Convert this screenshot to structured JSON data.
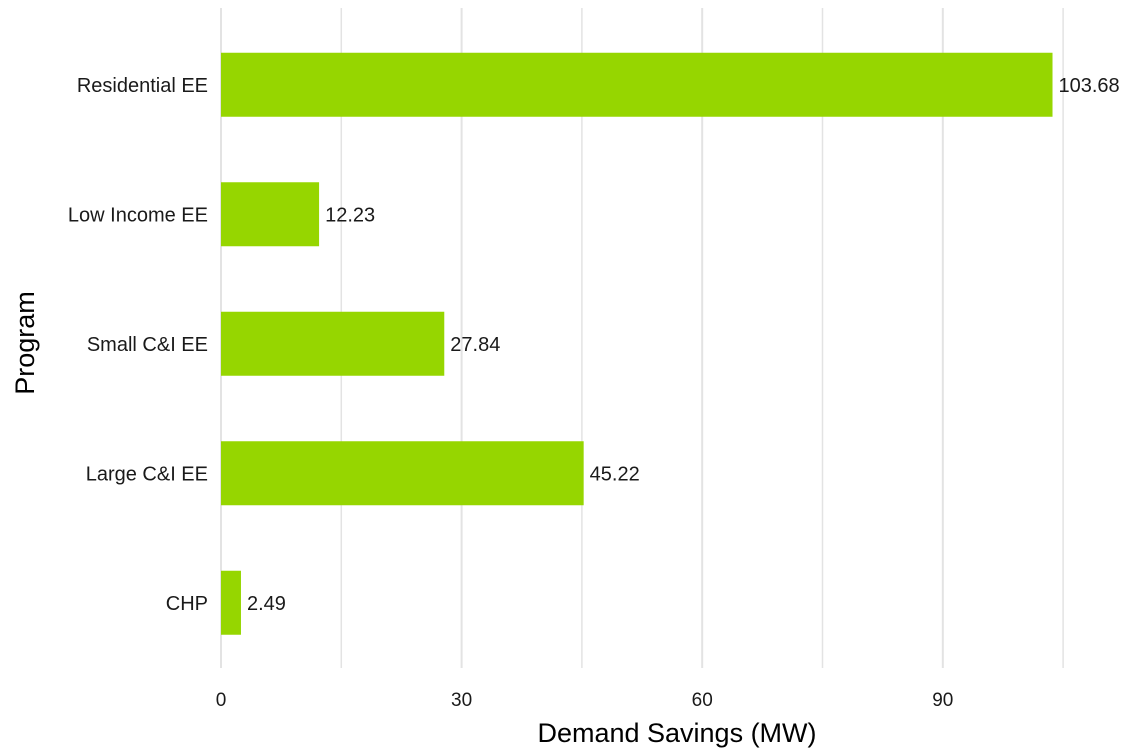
{
  "chart_data": {
    "type": "bar",
    "orientation": "horizontal",
    "categories": [
      "Residential EE",
      "Low Income EE",
      "Small C&I EE",
      "Large C&I EE",
      "CHP"
    ],
    "values": [
      103.68,
      12.23,
      27.84,
      45.22,
      2.49
    ],
    "value_labels": [
      "103.68",
      "12.23",
      "27.84",
      "45.22",
      "2.49"
    ],
    "xlabel": "Demand Savings (MW)",
    "ylabel": "Program",
    "xlim": [
      0,
      108
    ],
    "xticks": [
      0,
      30,
      60,
      90
    ],
    "xtick_labels": [
      "0",
      "30",
      "60",
      "90"
    ],
    "minor_gridlines": [
      15,
      45,
      75,
      105
    ],
    "grid": true,
    "bar_color": "#96d600",
    "grid_color": "#e3e3e3"
  }
}
